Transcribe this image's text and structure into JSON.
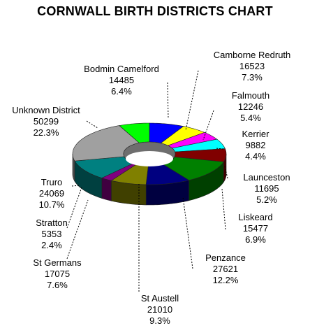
{
  "chart_data": {
    "type": "pie",
    "title": "CORNWALL BIRTH DISTRICTS CHART",
    "categories": [
      "Camborne Redruth",
      "Falmouth",
      "Kerrier",
      "Launceston",
      "Liskeard",
      "Penzance",
      "St Austell",
      "St Germans",
      "Stratton",
      "Truro",
      "Unknown District",
      "Bodmin Camelford"
    ],
    "values": [
      16523,
      12246,
      9882,
      11695,
      15477,
      27621,
      21010,
      17075,
      5353,
      24069,
      50299,
      14485
    ],
    "percents": [
      "7.3%",
      "5.4%",
      "4.4%",
      "5.2%",
      "6.9%",
      "12.2%",
      "9.3%",
      "7.6%",
      "2.4%",
      "10.7%",
      "22.3%",
      "6.4%"
    ],
    "labels": [
      {
        "name": "Camborne Redruth",
        "value": "16523",
        "percent": "7.3%"
      },
      {
        "name": "Falmouth",
        "value": "12246",
        "percent": "5.4%"
      },
      {
        "name": "Kerrier",
        "value": "9882",
        "percent": "4.4%"
      },
      {
        "name": "Launceston",
        "value": "11695",
        "percent": "5.2%"
      },
      {
        "name": "Liskeard",
        "value": "15477",
        "percent": "6.9%"
      },
      {
        "name": "Penzance",
        "value": "27621",
        "percent": "12.2%"
      },
      {
        "name": "St Austell",
        "value": "21010",
        "percent": "9.3%"
      },
      {
        "name": "St Germans",
        "value": "17075",
        "percent": "7.6%"
      },
      {
        "name": "Stratton",
        "value": "5353",
        "percent": "2.4%"
      },
      {
        "name": "Truro",
        "value": "24069",
        "percent": "10.7%"
      },
      {
        "name": "Unknown District",
        "value": "50299",
        "percent": "22.3%"
      },
      {
        "name": "Bodmin Camelford",
        "value": "14485",
        "percent": "6.4%"
      }
    ],
    "colors": [
      "#0000ff",
      "#ffff00",
      "#ff00ff",
      "#00ffff",
      "#800000",
      "#008000",
      "#000080",
      "#808000",
      "#800080",
      "#008080",
      "#a0a0a0",
      "#00ff00"
    ],
    "donut": true,
    "style": "3d"
  }
}
